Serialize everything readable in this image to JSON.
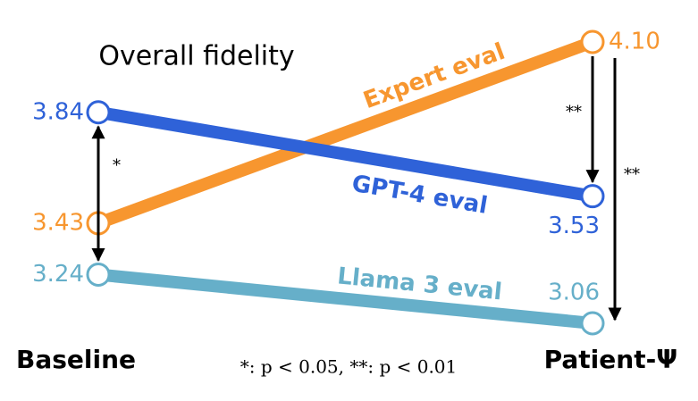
{
  "chart_data": {
    "type": "slope",
    "title": "Overall fidelity",
    "categories": [
      "Baseline",
      "Patient-Ψ"
    ],
    "series": [
      {
        "name": "Expert eval",
        "color": "#f7962f",
        "values": [
          3.43,
          4.1
        ],
        "value_labels": [
          "3.43",
          "4.10"
        ]
      },
      {
        "name": "GPT-4 eval",
        "color": "#2f62d8",
        "values": [
          3.84,
          3.53
        ]
      },
      {
        "name": "Llama 3 eval",
        "color": "#66afc9",
        "values": [
          3.24,
          3.06
        ]
      }
    ],
    "annotations": [
      "*",
      "**",
      "**"
    ],
    "footnote": "*: p < 0.05, **: p < 0.01"
  }
}
